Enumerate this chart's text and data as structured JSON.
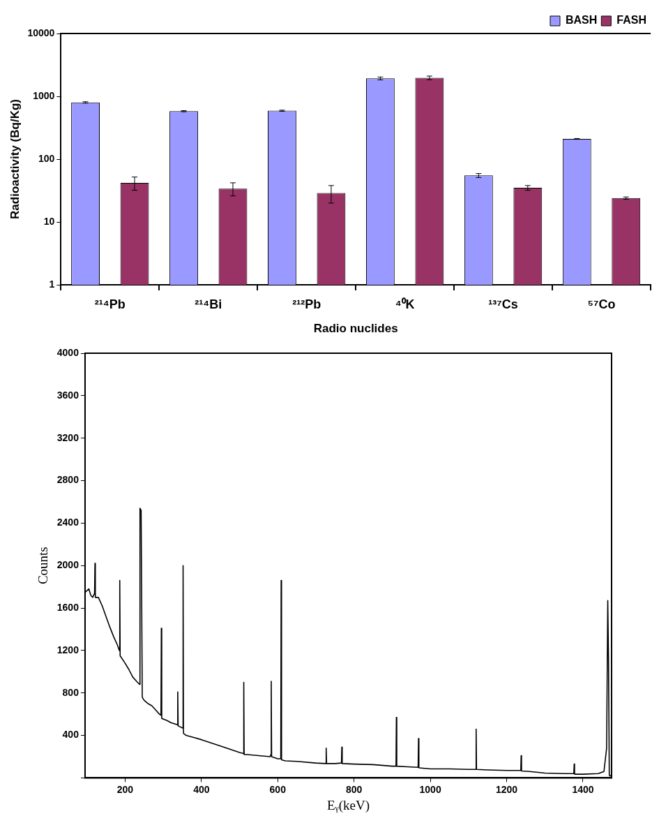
{
  "chart_data": [
    {
      "type": "bar",
      "xlabel": "Radio nuclides",
      "ylabel": "Radioactivity (Bq/Kg)",
      "categories": [
        "²¹⁴Pb",
        "²¹⁴Bi",
        "²¹²Pb",
        "⁴⁰K",
        "¹³⁷Cs",
        "⁵⁷Co"
      ],
      "series": [
        {
          "name": "BASH",
          "color": "#9999ff",
          "values": [
            800,
            580,
            590,
            1930,
            55,
            210
          ],
          "errors": [
            20,
            12,
            12,
            100,
            4,
            3
          ]
        },
        {
          "name": "FASH",
          "color": "#993366",
          "values": [
            42,
            34,
            29,
            1970,
            35,
            24
          ],
          "errors": [
            10,
            8,
            9,
            130,
            3,
            1
          ]
        }
      ],
      "log": true,
      "ylim": [
        1,
        10000
      ],
      "yticks": [
        1,
        10,
        100,
        1000,
        10000
      ],
      "legend": "top right"
    },
    {
      "type": "line",
      "xlabel": "Eᵧ(keV)",
      "ylabel": "Counts",
      "xlim": [
        95,
        1475
      ],
      "xticks": [
        200,
        400,
        600,
        800,
        1000,
        1200,
        1400
      ],
      "ylim": [
        0,
        4000
      ],
      "yticks": [
        {
          "value": 0,
          "label": null
        },
        400,
        800,
        1200,
        1600,
        2000,
        2400,
        2800,
        3200,
        3600,
        4000
      ],
      "marker": "none",
      "line_style": "solid",
      "series": [
        {
          "color": "#000000",
          "x": [
            96,
            105,
            110,
            115,
            120,
            121,
            122,
            130,
            140,
            150,
            160,
            170,
            180,
            185,
            186,
            187,
            200,
            210,
            220,
            230,
            238,
            239,
            242,
            245,
            250,
            260,
            270,
            280,
            290,
            294,
            295,
            296,
            310,
            320,
            337,
            338,
            339,
            351,
            352,
            353,
            360,
            380,
            400,
            450,
            500,
            510,
            511,
            512,
            520,
            550,
            580,
            582,
            583,
            584,
            600,
            608,
            609,
            610,
            620,
            650,
            700,
            726,
            727,
            728,
            750,
            767,
            768,
            769,
            800,
            850,
            900,
            910,
            911,
            912,
            940,
            968,
            969,
            970,
            1000,
            1050,
            1100,
            1119,
            1120,
            1121,
            1150,
            1200,
            1237,
            1238,
            1239,
            1260,
            1300,
            1350,
            1376,
            1377,
            1378,
            1400,
            1440,
            1455,
            1462,
            1465,
            1467,
            1469,
            1470,
            1475
          ],
          "values": [
            1750,
            1780,
            1720,
            1700,
            1740,
            2020,
            1700,
            1700,
            1620,
            1520,
            1420,
            1330,
            1250,
            1200,
            1860,
            1150,
            1080,
            1020,
            950,
            910,
            880,
            2540,
            2520,
            760,
            730,
            700,
            680,
            640,
            600,
            590,
            1410,
            560,
            540,
            520,
            500,
            810,
            490,
            470,
            2000,
            420,
            400,
            380,
            360,
            300,
            240,
            230,
            900,
            220,
            220,
            210,
            200,
            220,
            910,
            200,
            180,
            180,
            1860,
            170,
            160,
            155,
            140,
            135,
            280,
            135,
            135,
            140,
            290,
            135,
            130,
            125,
            110,
            110,
            570,
            110,
            105,
            100,
            370,
            95,
            85,
            85,
            80,
            80,
            460,
            80,
            75,
            70,
            70,
            210,
            65,
            60,
            45,
            40,
            40,
            130,
            35,
            35,
            40,
            60,
            280,
            1670,
            1100,
            30,
            20,
            20
          ]
        }
      ]
    }
  ]
}
